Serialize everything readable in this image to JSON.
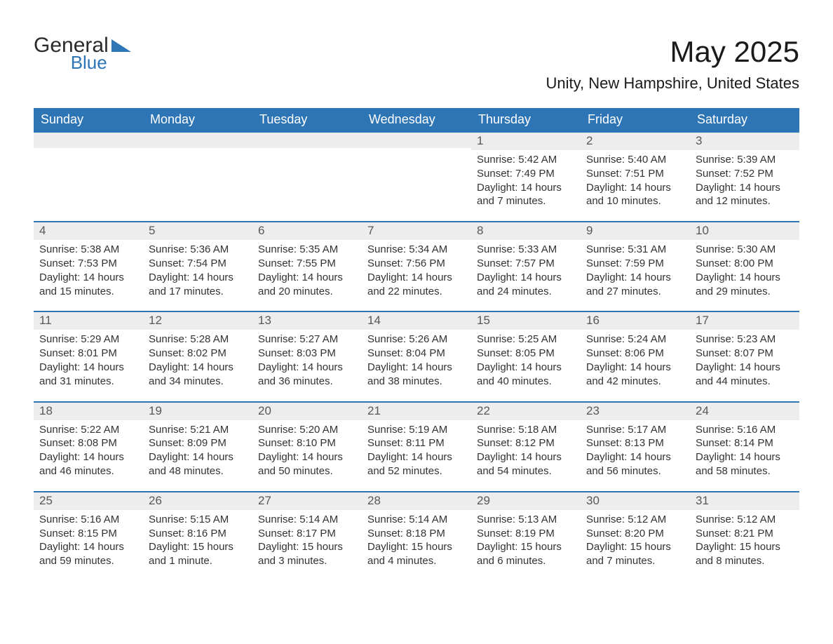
{
  "logo": {
    "word1": "General",
    "word2": "Blue"
  },
  "header": {
    "month_title": "May 2025",
    "location": "Unity, New Hampshire, United States"
  },
  "styles": {
    "header_bg": "#2e75b6",
    "header_text": "#ffffff",
    "daynum_bg": "#ededed",
    "daynum_text": "#585858",
    "rule_color": "#2e75b6",
    "body_text": "#333333",
    "page_bg": "#ffffff",
    "title_fontsize": 42,
    "location_fontsize": 22,
    "dayhead_fontsize": 18,
    "daynum_fontsize": 17,
    "cell_fontsize": 15
  },
  "day_headers": [
    "Sunday",
    "Monday",
    "Tuesday",
    "Wednesday",
    "Thursday",
    "Friday",
    "Saturday"
  ],
  "weeks": [
    [
      {
        "blank": true
      },
      {
        "blank": true
      },
      {
        "blank": true
      },
      {
        "blank": true
      },
      {
        "n": "1",
        "sunrise": "5:42 AM",
        "sunset": "7:49 PM",
        "daylight": "14 hours and 7 minutes."
      },
      {
        "n": "2",
        "sunrise": "5:40 AM",
        "sunset": "7:51 PM",
        "daylight": "14 hours and 10 minutes."
      },
      {
        "n": "3",
        "sunrise": "5:39 AM",
        "sunset": "7:52 PM",
        "daylight": "14 hours and 12 minutes."
      }
    ],
    [
      {
        "n": "4",
        "sunrise": "5:38 AM",
        "sunset": "7:53 PM",
        "daylight": "14 hours and 15 minutes."
      },
      {
        "n": "5",
        "sunrise": "5:36 AM",
        "sunset": "7:54 PM",
        "daylight": "14 hours and 17 minutes."
      },
      {
        "n": "6",
        "sunrise": "5:35 AM",
        "sunset": "7:55 PM",
        "daylight": "14 hours and 20 minutes."
      },
      {
        "n": "7",
        "sunrise": "5:34 AM",
        "sunset": "7:56 PM",
        "daylight": "14 hours and 22 minutes."
      },
      {
        "n": "8",
        "sunrise": "5:33 AM",
        "sunset": "7:57 PM",
        "daylight": "14 hours and 24 minutes."
      },
      {
        "n": "9",
        "sunrise": "5:31 AM",
        "sunset": "7:59 PM",
        "daylight": "14 hours and 27 minutes."
      },
      {
        "n": "10",
        "sunrise": "5:30 AM",
        "sunset": "8:00 PM",
        "daylight": "14 hours and 29 minutes."
      }
    ],
    [
      {
        "n": "11",
        "sunrise": "5:29 AM",
        "sunset": "8:01 PM",
        "daylight": "14 hours and 31 minutes."
      },
      {
        "n": "12",
        "sunrise": "5:28 AM",
        "sunset": "8:02 PM",
        "daylight": "14 hours and 34 minutes."
      },
      {
        "n": "13",
        "sunrise": "5:27 AM",
        "sunset": "8:03 PM",
        "daylight": "14 hours and 36 minutes."
      },
      {
        "n": "14",
        "sunrise": "5:26 AM",
        "sunset": "8:04 PM",
        "daylight": "14 hours and 38 minutes."
      },
      {
        "n": "15",
        "sunrise": "5:25 AM",
        "sunset": "8:05 PM",
        "daylight": "14 hours and 40 minutes."
      },
      {
        "n": "16",
        "sunrise": "5:24 AM",
        "sunset": "8:06 PM",
        "daylight": "14 hours and 42 minutes."
      },
      {
        "n": "17",
        "sunrise": "5:23 AM",
        "sunset": "8:07 PM",
        "daylight": "14 hours and 44 minutes."
      }
    ],
    [
      {
        "n": "18",
        "sunrise": "5:22 AM",
        "sunset": "8:08 PM",
        "daylight": "14 hours and 46 minutes."
      },
      {
        "n": "19",
        "sunrise": "5:21 AM",
        "sunset": "8:09 PM",
        "daylight": "14 hours and 48 minutes."
      },
      {
        "n": "20",
        "sunrise": "5:20 AM",
        "sunset": "8:10 PM",
        "daylight": "14 hours and 50 minutes."
      },
      {
        "n": "21",
        "sunrise": "5:19 AM",
        "sunset": "8:11 PM",
        "daylight": "14 hours and 52 minutes."
      },
      {
        "n": "22",
        "sunrise": "5:18 AM",
        "sunset": "8:12 PM",
        "daylight": "14 hours and 54 minutes."
      },
      {
        "n": "23",
        "sunrise": "5:17 AM",
        "sunset": "8:13 PM",
        "daylight": "14 hours and 56 minutes."
      },
      {
        "n": "24",
        "sunrise": "5:16 AM",
        "sunset": "8:14 PM",
        "daylight": "14 hours and 58 minutes."
      }
    ],
    [
      {
        "n": "25",
        "sunrise": "5:16 AM",
        "sunset": "8:15 PM",
        "daylight": "14 hours and 59 minutes."
      },
      {
        "n": "26",
        "sunrise": "5:15 AM",
        "sunset": "8:16 PM",
        "daylight": "15 hours and 1 minute."
      },
      {
        "n": "27",
        "sunrise": "5:14 AM",
        "sunset": "8:17 PM",
        "daylight": "15 hours and 3 minutes."
      },
      {
        "n": "28",
        "sunrise": "5:14 AM",
        "sunset": "8:18 PM",
        "daylight": "15 hours and 4 minutes."
      },
      {
        "n": "29",
        "sunrise": "5:13 AM",
        "sunset": "8:19 PM",
        "daylight": "15 hours and 6 minutes."
      },
      {
        "n": "30",
        "sunrise": "5:12 AM",
        "sunset": "8:20 PM",
        "daylight": "15 hours and 7 minutes."
      },
      {
        "n": "31",
        "sunrise": "5:12 AM",
        "sunset": "8:21 PM",
        "daylight": "15 hours and 8 minutes."
      }
    ]
  ],
  "labels": {
    "sunrise": "Sunrise:",
    "sunset": "Sunset:",
    "daylight": "Daylight:"
  }
}
